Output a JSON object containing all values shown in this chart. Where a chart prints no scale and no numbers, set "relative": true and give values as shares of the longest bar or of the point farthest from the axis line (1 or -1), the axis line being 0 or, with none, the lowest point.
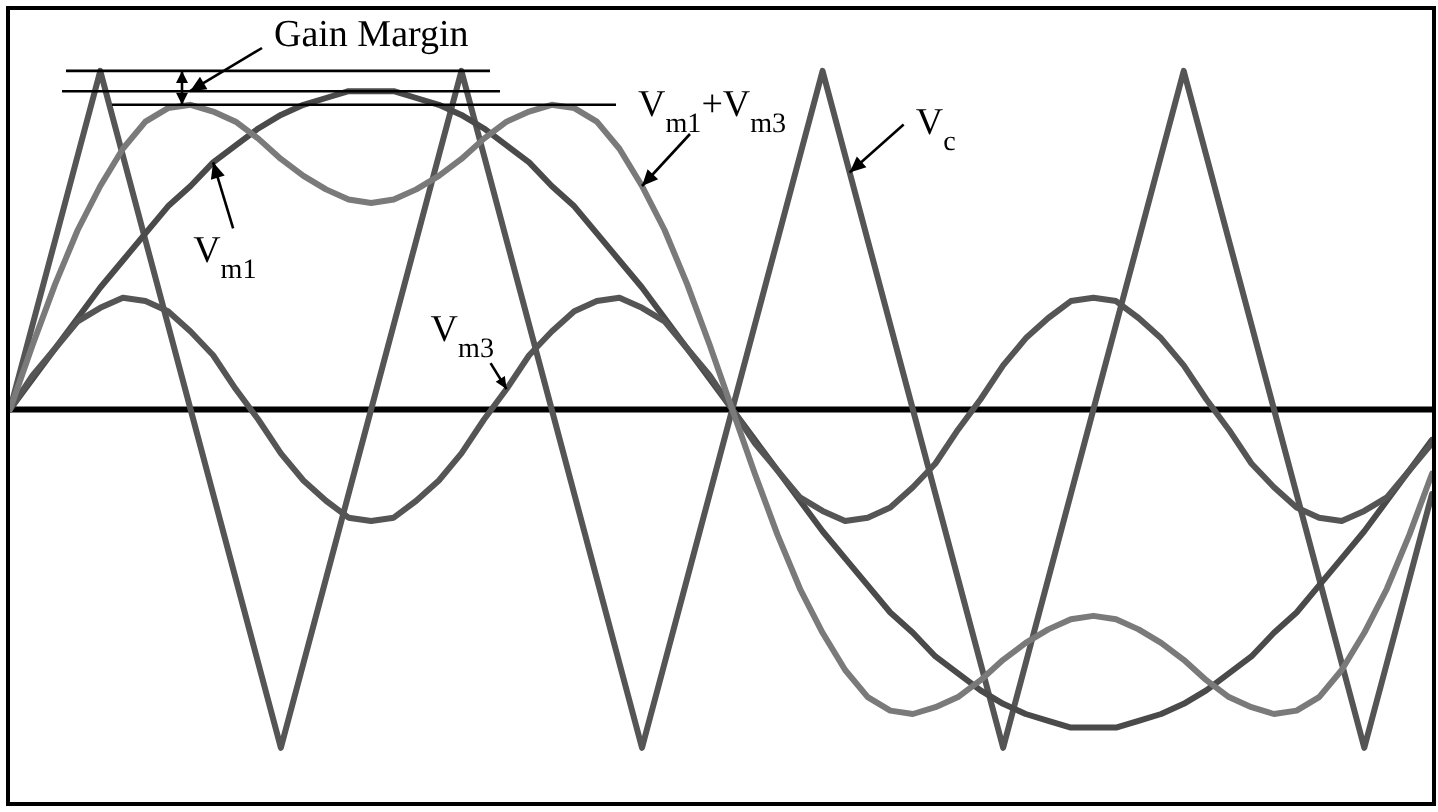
{
  "chart_data": {
    "type": "line",
    "relative": true,
    "tick_labels": false,
    "marker": "none",
    "line_style": "solid",
    "categories": [
      null,
      null,
      null,
      null,
      null,
      null,
      null,
      null,
      null,
      null,
      null,
      null,
      null,
      null,
      null,
      null,
      null,
      null,
      null,
      null,
      null,
      null,
      null,
      null,
      null,
      null,
      null,
      null,
      null,
      null,
      null,
      null,
      null,
      null,
      null,
      null,
      null,
      null,
      null,
      null,
      null,
      null,
      null,
      null,
      null,
      null,
      null,
      null,
      null,
      null,
      null,
      null,
      null,
      null,
      null,
      null,
      null,
      null,
      null,
      null,
      null,
      null,
      null,
      null
    ],
    "annotations": [
      "Gain Margin"
    ],
    "series": [
      {
        "name": "V$_{c}$",
        "color": "#555555",
        "values": [
          0,
          0.25,
          0.5,
          0.75,
          1,
          0.75,
          0.5,
          0.25,
          0,
          -0.25,
          -0.5,
          -0.75,
          -1,
          -0.75,
          -0.5,
          -0.25,
          0,
          0.25,
          0.5,
          0.75,
          1,
          0.75,
          0.5,
          0.25,
          0,
          -0.25,
          -0.5,
          -0.75,
          -1,
          -0.75,
          -0.5,
          -0.25,
          0,
          0.25,
          0.5,
          0.75,
          1,
          0.75,
          0.5,
          0.25,
          0,
          -0.25,
          -0.5,
          -0.75,
          -1,
          -0.75,
          -0.5,
          -0.25,
          0,
          0.25,
          0.5,
          0.75,
          1,
          0.75,
          0.5,
          0.25,
          0,
          -0.25,
          -0.5,
          -0.75,
          -1,
          -0.75,
          -0.5,
          -0.25
        ]
      },
      {
        "name": "V$_{m1}$",
        "color": "#4a4a4a",
        "values": [
          0,
          0.09,
          0.18,
          0.27,
          0.36,
          0.44,
          0.52,
          0.6,
          0.66,
          0.73,
          0.78,
          0.83,
          0.87,
          0.9,
          0.92,
          0.94,
          0.94,
          0.94,
          0.92,
          0.9,
          0.87,
          0.83,
          0.78,
          0.73,
          0.66,
          0.6,
          0.52,
          0.44,
          0.36,
          0.27,
          0.18,
          0.09,
          0,
          -0.09,
          -0.18,
          -0.27,
          -0.36,
          -0.44,
          -0.52,
          -0.6,
          -0.66,
          -0.73,
          -0.78,
          -0.83,
          -0.87,
          -0.9,
          -0.92,
          -0.94,
          -0.94,
          -0.94,
          -0.92,
          -0.9,
          -0.87,
          -0.83,
          -0.78,
          -0.73,
          -0.66,
          -0.6,
          -0.52,
          -0.44,
          -0.36,
          -0.27,
          -0.18,
          -0.09
        ]
      },
      {
        "name": "V$_{m3}$",
        "color": "#555555",
        "values": [
          0,
          0.1,
          0.18,
          0.26,
          0.3,
          0.33,
          0.32,
          0.29,
          0.23,
          0.16,
          0.06,
          -0.03,
          -0.13,
          -0.21,
          -0.27,
          -0.32,
          -0.33,
          -0.32,
          -0.27,
          -0.21,
          -0.13,
          -0.03,
          0.06,
          0.16,
          0.23,
          0.29,
          0.32,
          0.33,
          0.3,
          0.26,
          0.18,
          0.1,
          0,
          -0.1,
          -0.18,
          -0.26,
          -0.3,
          -0.33,
          -0.32,
          -0.29,
          -0.23,
          -0.16,
          -0.06,
          0.03,
          0.13,
          0.21,
          0.27,
          0.32,
          0.33,
          0.32,
          0.27,
          0.21,
          0.13,
          0.03,
          -0.06,
          -0.16,
          -0.23,
          -0.29,
          -0.32,
          -0.33,
          -0.3,
          -0.26,
          -0.18,
          -0.1
        ]
      },
      {
        "name": "V$_{m1}$+V$_{m3}$",
        "color": "#7a7a7a",
        "values": [
          0,
          0.19,
          0.37,
          0.53,
          0.66,
          0.77,
          0.85,
          0.89,
          0.9,
          0.88,
          0.85,
          0.8,
          0.74,
          0.69,
          0.65,
          0.62,
          0.61,
          0.62,
          0.65,
          0.69,
          0.74,
          0.8,
          0.85,
          0.88,
          0.9,
          0.89,
          0.85,
          0.77,
          0.66,
          0.53,
          0.37,
          0.19,
          0,
          -0.19,
          -0.37,
          -0.53,
          -0.66,
          -0.77,
          -0.85,
          -0.89,
          -0.9,
          -0.88,
          -0.85,
          -0.8,
          -0.74,
          -0.69,
          -0.65,
          -0.62,
          -0.61,
          -0.62,
          -0.65,
          -0.69,
          -0.74,
          -0.8,
          -0.85,
          -0.88,
          -0.9,
          -0.89,
          -0.85,
          -0.77,
          -0.66,
          -0.53,
          -0.37,
          -0.19
        ]
      }
    ]
  }
}
